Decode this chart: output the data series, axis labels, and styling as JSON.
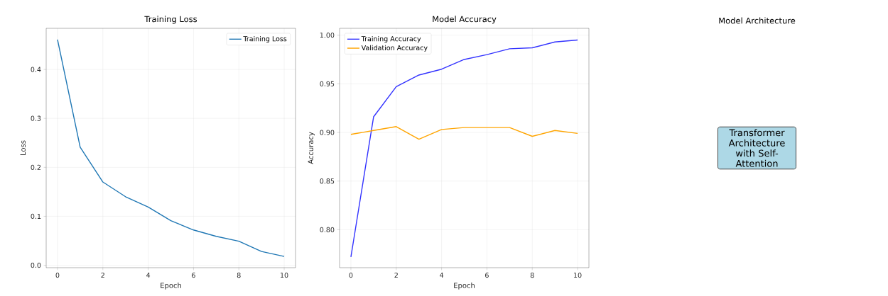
{
  "chart_data": [
    {
      "type": "line",
      "title": "Training Loss",
      "xlabel": "Epoch",
      "ylabel": "Loss",
      "x": [
        0,
        1,
        2,
        3,
        4,
        5,
        6,
        7,
        8,
        9,
        10
      ],
      "series": [
        {
          "name": "Training Loss",
          "color": "#1f77b4",
          "values": [
            0.461,
            0.241,
            0.17,
            0.14,
            0.119,
            0.091,
            0.072,
            0.059,
            0.049,
            0.028,
            0.018
          ]
        }
      ],
      "xlim": [
        -0.5,
        10.5
      ],
      "ylim": [
        -0.005,
        0.484
      ],
      "xticks": [
        0,
        2,
        4,
        6,
        8,
        10
      ],
      "yticks": [
        {
          "value": 0,
          "label": "0.0"
        },
        0.1,
        0.2,
        0.3,
        0.4
      ],
      "grid": true,
      "legend": "top right"
    },
    {
      "type": "line",
      "title": "Model Accuracy",
      "xlabel": "Epoch",
      "ylabel": "Accuracy",
      "x": [
        0,
        1,
        2,
        3,
        4,
        5,
        6,
        7,
        8,
        9,
        10
      ],
      "series": [
        {
          "name": "Training Accuracy",
          "color": "#3333ff",
          "values": [
            0.772,
            0.916,
            0.947,
            0.959,
            0.965,
            0.975,
            0.98,
            0.986,
            0.987,
            0.993,
            0.995
          ]
        },
        {
          "name": "Validation Accuracy",
          "color": "#ffa500",
          "values": [
            0.898,
            0.902,
            0.906,
            0.893,
            0.903,
            0.905,
            0.905,
            0.905,
            0.896,
            0.902,
            0.899
          ]
        }
      ],
      "xlim": [
        -0.5,
        10.5
      ],
      "ylim": [
        0.761,
        1.007
      ],
      "xticks": [
        0,
        2,
        4,
        6,
        8,
        10
      ],
      "yticks": [
        {
          "value": 0.8,
          "label": "0.80"
        },
        {
          "value": 0.85,
          "label": "0.85"
        },
        {
          "value": 0.9,
          "label": "0.90"
        },
        {
          "value": 0.95,
          "label": "0.95"
        },
        {
          "value": 1.0,
          "label": "1.00"
        }
      ],
      "grid": true,
      "legend": "top left"
    },
    {
      "type": "other",
      "title": "Model Architecture",
      "annotations": [
        "Transformer Architecture with Self-Attention"
      ]
    }
  ]
}
